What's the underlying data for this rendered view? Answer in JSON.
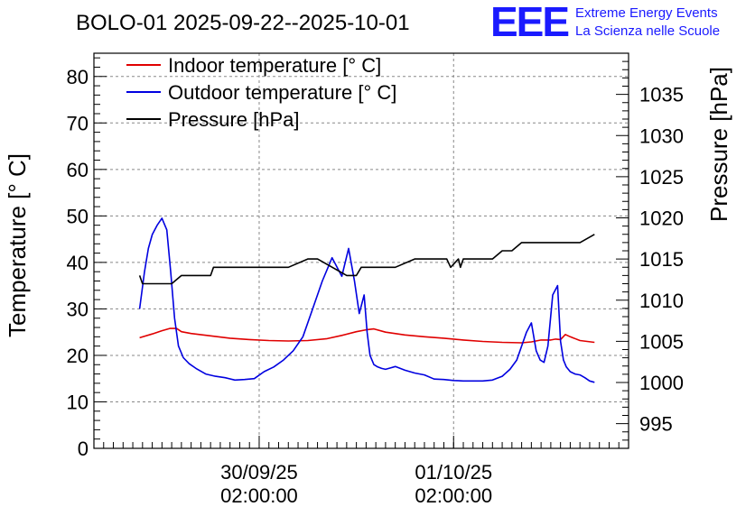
{
  "title": "BOLO-01 2025-09-22--2025-10-01",
  "logo": {
    "mark": "EEE",
    "line1": "Extreme Energy Events",
    "line2": "La Scienza nelle Scuole",
    "color": "#1a1aff"
  },
  "chart_data": {
    "type": "line",
    "title": "BOLO-01 2025-09-22--2025-10-01",
    "xlabel": "",
    "ylabel": "Temperature [° C]",
    "y2label": "Pressure [hPa]",
    "ylim": [
      0,
      85
    ],
    "y2lim": [
      992,
      1040
    ],
    "xlim": [
      0,
      55
    ],
    "grid": true,
    "legend_position": "top-left",
    "y_ticks": [
      0,
      10,
      20,
      30,
      40,
      50,
      60,
      70,
      80
    ],
    "y2_ticks": [
      995,
      1000,
      1005,
      1010,
      1015,
      1020,
      1025,
      1030,
      1035
    ],
    "x_ticks": [
      {
        "x": 17,
        "date": "30/09/25",
        "time": "02:00:00"
      },
      {
        "x": 37,
        "date": "01/10/25",
        "time": "02:00:00"
      }
    ],
    "series": [
      {
        "name": "Indoor temperature [° C]",
        "axis": "left",
        "color": "#e00000",
        "x": [
          4.7,
          6,
          7,
          7.8,
          8.5,
          9,
          10,
          12,
          14,
          16,
          18,
          20,
          22,
          24,
          25.5,
          27,
          28,
          28.8,
          30,
          32,
          34,
          36,
          38,
          40,
          42,
          44,
          45,
          46,
          47,
          47.5,
          48,
          48.5,
          49,
          50,
          51.5
        ],
        "values": [
          23.8,
          24.6,
          25.3,
          25.8,
          25.8,
          25.1,
          24.7,
          24.2,
          23.7,
          23.4,
          23.2,
          23.1,
          23.2,
          23.6,
          24.3,
          25.1,
          25.5,
          25.7,
          25.0,
          24.4,
          24.0,
          23.7,
          23.3,
          23.0,
          22.8,
          22.7,
          22.9,
          23.3,
          23.3,
          23.5,
          23.4,
          24.5,
          24.0,
          23.2,
          22.8
        ]
      },
      {
        "name": "Outdoor temperature [° C]",
        "axis": "left",
        "color": "#0000e0",
        "x": [
          4.7,
          5.2,
          5.6,
          6.0,
          6.5,
          7.0,
          7.5,
          7.9,
          8.3,
          8.7,
          9.2,
          9.8,
          10.5,
          11.5,
          12.5,
          13.5,
          14.5,
          15.5,
          16.5,
          17.5,
          18.5,
          19.5,
          20.5,
          21.5,
          22.5,
          23.5,
          24.5,
          25.5,
          26.2,
          26.8,
          27.3,
          27.8,
          28.1,
          28.4,
          28.8,
          29.2,
          29.6,
          30.0,
          30.5,
          31.0,
          32.0,
          33.0,
          34.0,
          35.0,
          36.0,
          37.0,
          38.0,
          39.0,
          40.0,
          41.0,
          42.0,
          42.8,
          43.5,
          44.0,
          44.5,
          45.0,
          45.5,
          45.9,
          46.3,
          46.7,
          47.2,
          47.7,
          48.0,
          48.3,
          48.6,
          49.0,
          49.5,
          50.0,
          50.5,
          51.0,
          51.5
        ],
        "values": [
          30,
          38,
          43,
          46,
          48,
          49.5,
          47,
          38,
          28,
          22,
          19.5,
          18.2,
          17.2,
          16,
          15.5,
          15.2,
          14.7,
          14.8,
          15.0,
          16.5,
          17.5,
          19,
          21,
          24,
          30,
          36,
          41,
          37,
          43,
          36,
          29,
          33,
          25,
          20,
          18,
          17.5,
          17.2,
          17,
          17.3,
          17.6,
          16.8,
          16.2,
          15.8,
          14.9,
          14.8,
          14.6,
          14.5,
          14.5,
          14.5,
          14.7,
          15.5,
          17,
          19,
          22,
          25,
          27,
          21,
          19,
          18.5,
          22,
          33,
          35,
          23,
          19,
          17.5,
          16.5,
          16,
          15.8,
          15.2,
          14.5,
          14.2
        ]
      },
      {
        "name": "Pressure [hPa]",
        "axis": "right",
        "color": "#000000",
        "x": [
          4.7,
          5.0,
          5.5,
          8.0,
          9.0,
          10.0,
          12.0,
          12.3,
          13.0,
          16.5,
          20.0,
          22.0,
          23.0,
          26.0,
          27.0,
          27.5,
          28.5,
          29.5,
          31.0,
          33.0,
          36.0,
          36.3,
          36.7,
          37.5,
          37.7,
          38.0,
          39.5,
          41.0,
          42.0,
          43.0,
          44.0,
          46.0,
          47.0,
          48.0,
          48.5,
          50.0,
          51.5
        ],
        "values": [
          1013,
          1012,
          1012,
          1012,
          1013,
          1013,
          1013,
          1014,
          1014,
          1014,
          1014,
          1015,
          1015,
          1013,
          1013,
          1014,
          1014,
          1014,
          1014,
          1015,
          1015,
          1015,
          1014,
          1015,
          1014,
          1015,
          1015,
          1015,
          1016,
          1016,
          1017,
          1017,
          1017,
          1017,
          1017,
          1017,
          1018
        ]
      }
    ]
  }
}
